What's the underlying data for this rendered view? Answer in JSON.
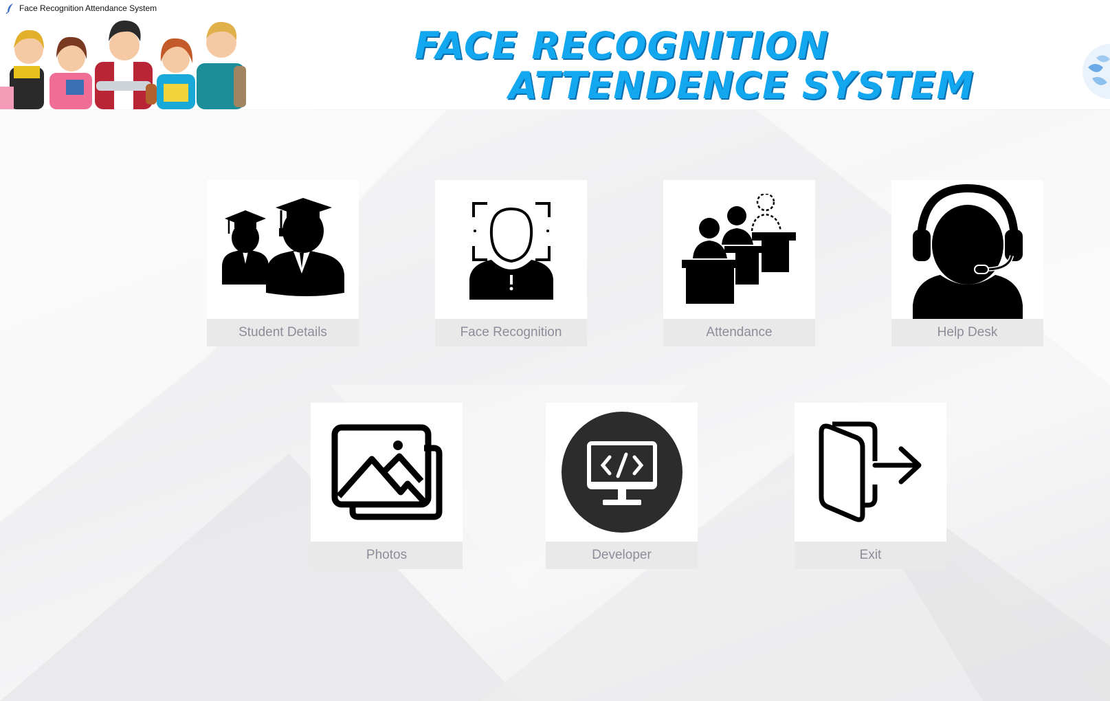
{
  "window": {
    "title": "Face Recognition Attendance System"
  },
  "header": {
    "headline_line1": "FACE RECOGNITION",
    "headline_line2": "ATTENDENCE SYSTEM"
  },
  "tiles": {
    "student_details": {
      "label": "Student Details",
      "icon": "student-graduates-icon"
    },
    "face_recognition": {
      "label": "Face Recognition",
      "icon": "face-scan-icon"
    },
    "attendance": {
      "label": "Attendance",
      "icon": "classroom-attendance-icon"
    },
    "help_desk": {
      "label": "Help Desk",
      "icon": "headset-support-icon"
    },
    "photos": {
      "label": "Photos",
      "icon": "photo-gallery-icon"
    },
    "developer": {
      "label": "Developer",
      "icon": "code-monitor-icon"
    },
    "exit": {
      "label": "Exit",
      "icon": "exit-door-icon"
    }
  },
  "colors": {
    "headline": "#12a7ee",
    "headline_shadow": "#0b6fb0",
    "label_text": "#8d8d9a",
    "label_bg": "#e9e9ea",
    "icon": "#000000"
  }
}
